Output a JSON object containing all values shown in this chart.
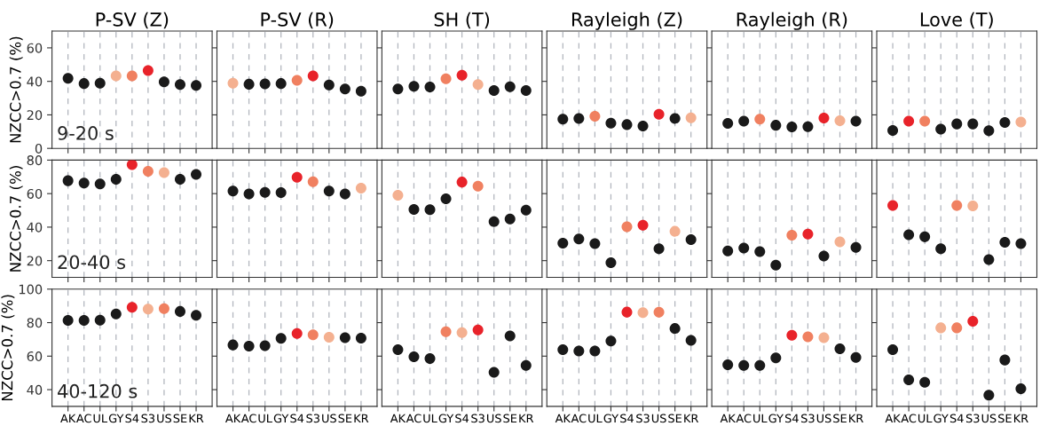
{
  "chart_data": [
    {
      "type": "scatter",
      "title": "P-SV (Z)",
      "ylabel": "NZCC>0.7 (%)",
      "annotations": [
        "9-20 s"
      ],
      "categories": [
        "AK",
        "AC",
        "UL",
        "GY",
        "S4",
        "S3",
        "US",
        "SE",
        "KR"
      ],
      "values": [
        41.8,
        38.7,
        38.9,
        43.3,
        43.3,
        46.4,
        39.7,
        38.1,
        37.6
      ],
      "colors": [
        "#1a1a1a",
        "#1a1a1a",
        "#1a1a1a",
        "#f4b090",
        "#f08060",
        "#e8232a",
        "#1a1a1a",
        "#1a1a1a",
        "#1a1a1a"
      ],
      "ylim": [
        0,
        70
      ],
      "yticks": [
        0,
        20,
        40,
        60
      ],
      "tick_labels": "y",
      "grid": "x",
      "marker": "circle"
    },
    {
      "type": "scatter",
      "title": "P-SV (R)",
      "categories": [
        "AK",
        "AC",
        "UL",
        "GY",
        "S4",
        "S3",
        "US",
        "SE",
        "KR"
      ],
      "values": [
        38.9,
        38.3,
        38.5,
        38.7,
        40.6,
        43.3,
        37.8,
        35.5,
        34.1
      ],
      "colors": [
        "#f4b090",
        "#1a1a1a",
        "#1a1a1a",
        "#1a1a1a",
        "#f08060",
        "#e8232a",
        "#1a1a1a",
        "#1a1a1a",
        "#1a1a1a"
      ],
      "ylim": [
        0,
        70
      ],
      "yticks": [
        0,
        20,
        40,
        60
      ],
      "tick_labels": false,
      "grid": "x",
      "marker": "circle"
    },
    {
      "type": "scatter",
      "title": "SH (T)",
      "categories": [
        "AK",
        "AC",
        "UL",
        "GY",
        "S4",
        "S3",
        "US",
        "SE",
        "KR"
      ],
      "values": [
        35.5,
        37.0,
        36.6,
        41.6,
        43.7,
        38.1,
        34.5,
        36.8,
        34.5
      ],
      "colors": [
        "#1a1a1a",
        "#1a1a1a",
        "#1a1a1a",
        "#f08060",
        "#e8232a",
        "#f4b090",
        "#1a1a1a",
        "#1a1a1a",
        "#1a1a1a"
      ],
      "ylim": [
        0,
        70
      ],
      "yticks": [
        0,
        20,
        40,
        60
      ],
      "tick_labels": false,
      "grid": "x",
      "marker": "circle"
    },
    {
      "type": "scatter",
      "title": "Rayleigh (Z)",
      "categories": [
        "AK",
        "AC",
        "UL",
        "GY",
        "S4",
        "S3",
        "US",
        "SE",
        "KR"
      ],
      "values": [
        17.5,
        17.9,
        19.2,
        15.1,
        14.2,
        13.4,
        20.4,
        17.9,
        18.3
      ],
      "colors": [
        "#1a1a1a",
        "#1a1a1a",
        "#f08060",
        "#1a1a1a",
        "#1a1a1a",
        "#1a1a1a",
        "#e8232a",
        "#1a1a1a",
        "#f4b090"
      ],
      "ylim": [
        0,
        70
      ],
      "yticks": [
        0,
        20,
        40,
        60
      ],
      "tick_labels": false,
      "grid": "x",
      "marker": "circle"
    },
    {
      "type": "scatter",
      "title": "Rayleigh (R)",
      "categories": [
        "AK",
        "AC",
        "UL",
        "GY",
        "S4",
        "S3",
        "US",
        "SE",
        "KR"
      ],
      "values": [
        14.9,
        16.3,
        17.5,
        13.8,
        12.8,
        13.0,
        18.1,
        16.5,
        16.3
      ],
      "colors": [
        "#1a1a1a",
        "#1a1a1a",
        "#f08060",
        "#1a1a1a",
        "#1a1a1a",
        "#1a1a1a",
        "#e8232a",
        "#f4b090",
        "#1a1a1a"
      ],
      "ylim": [
        0,
        70
      ],
      "yticks": [
        0,
        20,
        40,
        60
      ],
      "tick_labels": false,
      "grid": "x",
      "marker": "circle"
    },
    {
      "type": "scatter",
      "title": "Love (T)",
      "categories": [
        "AK",
        "AC",
        "UL",
        "GY",
        "S4",
        "S3",
        "US",
        "SE",
        "KR"
      ],
      "values": [
        10.7,
        16.3,
        16.3,
        11.5,
        14.6,
        14.6,
        10.5,
        15.5,
        15.7
      ],
      "colors": [
        "#1a1a1a",
        "#e8232a",
        "#f08060",
        "#1a1a1a",
        "#1a1a1a",
        "#1a1a1a",
        "#1a1a1a",
        "#1a1a1a",
        "#f4b090"
      ],
      "ylim": [
        0,
        70
      ],
      "yticks": [
        0,
        20,
        40,
        60
      ],
      "tick_labels": false,
      "grid": "x",
      "marker": "circle"
    },
    {
      "type": "scatter",
      "ylabel": "NZCC>0.7 (%)",
      "annotations": [
        "20-40 s"
      ],
      "categories": [
        "AK",
        "AC",
        "UL",
        "GY",
        "S4",
        "S3",
        "US",
        "SE",
        "KR"
      ],
      "values": [
        67.7,
        66.3,
        65.8,
        68.5,
        77.3,
        73.3,
        72.5,
        68.5,
        71.5
      ],
      "colors": [
        "#1a1a1a",
        "#1a1a1a",
        "#1a1a1a",
        "#1a1a1a",
        "#e8232a",
        "#f08060",
        "#f4b090",
        "#1a1a1a",
        "#1a1a1a"
      ],
      "ylim": [
        10,
        80
      ],
      "yticks": [
        20,
        40,
        60,
        80
      ],
      "tick_labels": "y",
      "grid": "x",
      "marker": "circle"
    },
    {
      "type": "scatter",
      "categories": [
        "AK",
        "AC",
        "UL",
        "GY",
        "S4",
        "S3",
        "US",
        "SE",
        "KR"
      ],
      "values": [
        61.5,
        59.8,
        60.8,
        60.6,
        69.8,
        67.1,
        61.5,
        59.8,
        63.3
      ],
      "colors": [
        "#1a1a1a",
        "#1a1a1a",
        "#1a1a1a",
        "#1a1a1a",
        "#e8232a",
        "#f08060",
        "#1a1a1a",
        "#1a1a1a",
        "#f4b090"
      ],
      "ylim": [
        10,
        80
      ],
      "yticks": [
        20,
        40,
        60,
        80
      ],
      "tick_labels": false,
      "grid": "x",
      "marker": "circle"
    },
    {
      "type": "scatter",
      "categories": [
        "AK",
        "AC",
        "UL",
        "GY",
        "S4",
        "S3",
        "US",
        "SE",
        "KR"
      ],
      "values": [
        59.0,
        50.6,
        50.4,
        56.9,
        66.9,
        64.4,
        43.3,
        44.8,
        50.2
      ],
      "colors": [
        "#f4b090",
        "#1a1a1a",
        "#1a1a1a",
        "#1a1a1a",
        "#e8232a",
        "#f08060",
        "#1a1a1a",
        "#1a1a1a",
        "#1a1a1a"
      ],
      "ylim": [
        10,
        80
      ],
      "yticks": [
        20,
        40,
        60,
        80
      ],
      "tick_labels": false,
      "grid": "x",
      "marker": "circle"
    },
    {
      "type": "scatter",
      "categories": [
        "AK",
        "AC",
        "UL",
        "GY",
        "S4",
        "S3",
        "US",
        "SE",
        "KR"
      ],
      "values": [
        30.4,
        32.9,
        30.2,
        18.8,
        40.2,
        41.2,
        27.1,
        37.5,
        32.5
      ],
      "colors": [
        "#1a1a1a",
        "#1a1a1a",
        "#1a1a1a",
        "#1a1a1a",
        "#f08060",
        "#e8232a",
        "#1a1a1a",
        "#f4b090",
        "#1a1a1a"
      ],
      "ylim": [
        10,
        80
      ],
      "yticks": [
        20,
        40,
        60,
        80
      ],
      "tick_labels": false,
      "grid": "x",
      "marker": "circle"
    },
    {
      "type": "scatter",
      "categories": [
        "AK",
        "AC",
        "UL",
        "GY",
        "S4",
        "S3",
        "US",
        "SE",
        "KR"
      ],
      "values": [
        25.8,
        27.5,
        25.4,
        17.3,
        35.2,
        35.8,
        22.7,
        31.2,
        27.9
      ],
      "colors": [
        "#1a1a1a",
        "#1a1a1a",
        "#1a1a1a",
        "#1a1a1a",
        "#f08060",
        "#e8232a",
        "#1a1a1a",
        "#f4b090",
        "#1a1a1a"
      ],
      "ylim": [
        10,
        80
      ],
      "yticks": [
        20,
        40,
        60,
        80
      ],
      "tick_labels": false,
      "grid": "x",
      "marker": "circle"
    },
    {
      "type": "scatter",
      "categories": [
        "AK",
        "AC",
        "UL",
        "GY",
        "S4",
        "S3",
        "US",
        "SE",
        "KR"
      ],
      "values": [
        52.9,
        35.4,
        34.2,
        27.1,
        52.9,
        52.7,
        20.6,
        31.0,
        30.2
      ],
      "colors": [
        "#e8232a",
        "#1a1a1a",
        "#1a1a1a",
        "#1a1a1a",
        "#f08060",
        "#f4b090",
        "#1a1a1a",
        "#1a1a1a",
        "#1a1a1a"
      ],
      "ylim": [
        10,
        80
      ],
      "yticks": [
        20,
        40,
        60,
        80
      ],
      "tick_labels": false,
      "grid": "x",
      "marker": "circle"
    },
    {
      "type": "scatter",
      "ylabel": "NZCC>0.7 (%)",
      "annotations": [
        "40-120 s"
      ],
      "categories": [
        "AK",
        "AC",
        "UL",
        "GY",
        "S4",
        "S3",
        "US",
        "SE",
        "KR"
      ],
      "values": [
        81.3,
        81.3,
        81.5,
        85.2,
        89.2,
        88.1,
        88.3,
        86.7,
        84.4
      ],
      "colors": [
        "#1a1a1a",
        "#1a1a1a",
        "#1a1a1a",
        "#1a1a1a",
        "#e8232a",
        "#f4b090",
        "#f08060",
        "#1a1a1a",
        "#1a1a1a"
      ],
      "ylim": [
        30,
        100
      ],
      "yticks": [
        40,
        60,
        80,
        100
      ],
      "grid": "x",
      "marker": "circle"
    },
    {
      "type": "scatter",
      "categories": [
        "AK",
        "AC",
        "UL",
        "GY",
        "S4",
        "S3",
        "US",
        "SE",
        "KR"
      ],
      "values": [
        66.7,
        66.0,
        66.3,
        70.6,
        73.5,
        72.7,
        71.3,
        71.0,
        70.8
      ],
      "colors": [
        "#1a1a1a",
        "#1a1a1a",
        "#1a1a1a",
        "#1a1a1a",
        "#e8232a",
        "#f08060",
        "#f4b090",
        "#1a1a1a",
        "#1a1a1a"
      ],
      "ylim": [
        30,
        100
      ],
      "yticks": [
        40,
        60,
        80,
        100
      ],
      "tick_labels": "x",
      "grid": "x",
      "marker": "circle"
    },
    {
      "type": "scatter",
      "categories": [
        "AK",
        "AC",
        "UL",
        "GY",
        "S4",
        "S3",
        "US",
        "SE",
        "KR"
      ],
      "values": [
        63.8,
        59.6,
        58.5,
        74.6,
        74.0,
        75.6,
        50.4,
        72.1,
        54.4
      ],
      "colors": [
        "#1a1a1a",
        "#1a1a1a",
        "#1a1a1a",
        "#f08060",
        "#f4b090",
        "#e8232a",
        "#1a1a1a",
        "#1a1a1a",
        "#1a1a1a"
      ],
      "ylim": [
        30,
        100
      ],
      "yticks": [
        40,
        60,
        80,
        100
      ],
      "tick_labels": "x",
      "grid": "x",
      "marker": "circle"
    },
    {
      "type": "scatter",
      "categories": [
        "AK",
        "AC",
        "UL",
        "GY",
        "S4",
        "S3",
        "US",
        "SE",
        "KR"
      ],
      "values": [
        63.8,
        63.1,
        63.1,
        69.0,
        86.3,
        86.0,
        86.2,
        76.5,
        69.4
      ],
      "colors": [
        "#1a1a1a",
        "#1a1a1a",
        "#1a1a1a",
        "#1a1a1a",
        "#e8232a",
        "#f4b090",
        "#f08060",
        "#1a1a1a",
        "#1a1a1a"
      ],
      "ylim": [
        30,
        100
      ],
      "yticks": [
        40,
        60,
        80,
        100
      ],
      "tick_labels": "x",
      "grid": "x",
      "marker": "circle"
    },
    {
      "type": "scatter",
      "categories": [
        "AK",
        "AC",
        "UL",
        "GY",
        "S4",
        "S3",
        "US",
        "SE",
        "KR"
      ],
      "values": [
        54.8,
        54.4,
        54.4,
        59.0,
        72.5,
        71.5,
        71.0,
        64.4,
        59.2
      ],
      "colors": [
        "#1a1a1a",
        "#1a1a1a",
        "#1a1a1a",
        "#1a1a1a",
        "#e8232a",
        "#f08060",
        "#f4b090",
        "#1a1a1a",
        "#1a1a1a"
      ],
      "ylim": [
        30,
        100
      ],
      "yticks": [
        40,
        60,
        80,
        100
      ],
      "tick_labels": "x",
      "grid": "x",
      "marker": "circle"
    },
    {
      "type": "scatter",
      "categories": [
        "AK",
        "AC",
        "UL",
        "GY",
        "S4",
        "S3",
        "US",
        "SE",
        "KR"
      ],
      "values": [
        63.8,
        45.8,
        44.4,
        76.9,
        76.9,
        80.8,
        36.7,
        57.7,
        40.6
      ],
      "colors": [
        "#1a1a1a",
        "#1a1a1a",
        "#1a1a1a",
        "#f4b090",
        "#f08060",
        "#e8232a",
        "#1a1a1a",
        "#1a1a1a",
        "#1a1a1a"
      ],
      "ylim": [
        30,
        100
      ],
      "yticks": [
        40,
        60,
        80,
        100
      ],
      "tick_labels": "x",
      "grid": "x",
      "marker": "circle"
    }
  ]
}
